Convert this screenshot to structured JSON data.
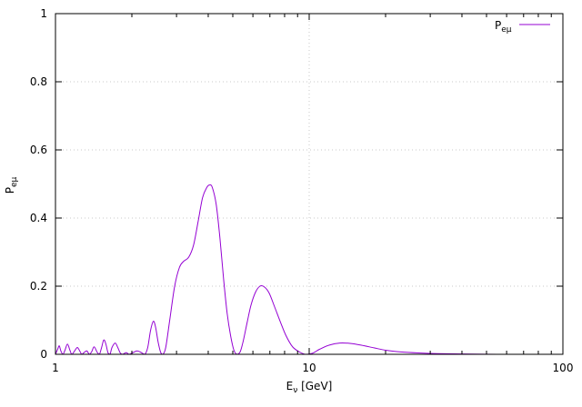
{
  "chart_data": {
    "type": "line",
    "title": "",
    "xlabel_main": "E",
    "xlabel_sub": "ν",
    "xlabel_rest": " [GeV]",
    "ylabel_main": "P",
    "ylabel_sub": "eμ",
    "xscale": "log",
    "xlim": [
      1,
      100
    ],
    "ylim": [
      0,
      1
    ],
    "grid": true,
    "legend_position": "top-right",
    "x_ticks": [
      {
        "value": 1,
        "label": "1"
      },
      {
        "value": 10,
        "label": "10"
      },
      {
        "value": 100,
        "label": "100"
      }
    ],
    "y_ticks": [
      {
        "value": 0,
        "label": "0"
      },
      {
        "value": 0.2,
        "label": "0.2"
      },
      {
        "value": 0.4,
        "label": "0.4"
      },
      {
        "value": 0.6,
        "label": "0.6"
      },
      {
        "value": 0.8,
        "label": "0.8"
      },
      {
        "value": 1,
        "label": "1"
      }
    ],
    "series": [
      {
        "name_main": "P",
        "name_sub": "eμ",
        "color": "#9400d3",
        "points": [
          [
            1.0,
            0.0
          ],
          [
            1.02,
            0.015
          ],
          [
            1.035,
            0.025
          ],
          [
            1.05,
            0.01
          ],
          [
            1.07,
            0.0
          ],
          [
            1.09,
            0.012
          ],
          [
            1.115,
            0.03
          ],
          [
            1.14,
            0.012
          ],
          [
            1.16,
            0.0
          ],
          [
            1.19,
            0.01
          ],
          [
            1.22,
            0.02
          ],
          [
            1.25,
            0.008
          ],
          [
            1.27,
            0.0
          ],
          [
            1.3,
            0.006
          ],
          [
            1.33,
            0.01
          ],
          [
            1.36,
            0.0
          ],
          [
            1.39,
            0.008
          ],
          [
            1.42,
            0.022
          ],
          [
            1.46,
            0.006
          ],
          [
            1.49,
            0.0
          ],
          [
            1.52,
            0.02
          ],
          [
            1.55,
            0.042
          ],
          [
            1.58,
            0.03
          ],
          [
            1.61,
            0.005
          ],
          [
            1.64,
            0.0
          ],
          [
            1.67,
            0.02
          ],
          [
            1.72,
            0.033
          ],
          [
            1.76,
            0.02
          ],
          [
            1.8,
            0.004
          ],
          [
            1.84,
            0.0
          ],
          [
            1.9,
            0.005
          ],
          [
            1.95,
            0.0
          ],
          [
            2.02,
            0.005
          ],
          [
            2.1,
            0.01
          ],
          [
            2.18,
            0.005
          ],
          [
            2.25,
            0.0
          ],
          [
            2.31,
            0.02
          ],
          [
            2.37,
            0.07
          ],
          [
            2.43,
            0.097
          ],
          [
            2.48,
            0.08
          ],
          [
            2.54,
            0.035
          ],
          [
            2.6,
            0.005
          ],
          [
            2.65,
            0.0
          ],
          [
            2.72,
            0.02
          ],
          [
            2.82,
            0.1
          ],
          [
            2.95,
            0.2
          ],
          [
            3.08,
            0.255
          ],
          [
            3.2,
            0.273
          ],
          [
            3.35,
            0.285
          ],
          [
            3.5,
            0.32
          ],
          [
            3.65,
            0.39
          ],
          [
            3.8,
            0.46
          ],
          [
            3.95,
            0.49
          ],
          [
            4.05,
            0.497
          ],
          [
            4.15,
            0.49
          ],
          [
            4.3,
            0.44
          ],
          [
            4.45,
            0.34
          ],
          [
            4.6,
            0.22
          ],
          [
            4.75,
            0.12
          ],
          [
            4.9,
            0.055
          ],
          [
            5.05,
            0.012
          ],
          [
            5.2,
            0.0
          ],
          [
            5.35,
            0.008
          ],
          [
            5.5,
            0.04
          ],
          [
            5.7,
            0.095
          ],
          [
            5.9,
            0.145
          ],
          [
            6.15,
            0.183
          ],
          [
            6.4,
            0.2
          ],
          [
            6.65,
            0.198
          ],
          [
            6.95,
            0.18
          ],
          [
            7.3,
            0.14
          ],
          [
            7.7,
            0.095
          ],
          [
            8.1,
            0.055
          ],
          [
            8.6,
            0.022
          ],
          [
            9.2,
            0.006
          ],
          [
            9.7,
            0.0
          ],
          [
            10.3,
            0.003
          ],
          [
            11.0,
            0.015
          ],
          [
            12.0,
            0.027
          ],
          [
            13.2,
            0.033
          ],
          [
            14.5,
            0.032
          ],
          [
            16.0,
            0.027
          ],
          [
            18.0,
            0.019
          ],
          [
            20.0,
            0.012
          ],
          [
            23.0,
            0.007
          ],
          [
            27.0,
            0.004
          ],
          [
            32.0,
            0.002
          ],
          [
            40.0,
            0.001
          ],
          [
            55.0,
            0.0
          ],
          [
            75.0,
            0.0
          ],
          [
            100.0,
            0.0
          ]
        ]
      }
    ]
  }
}
